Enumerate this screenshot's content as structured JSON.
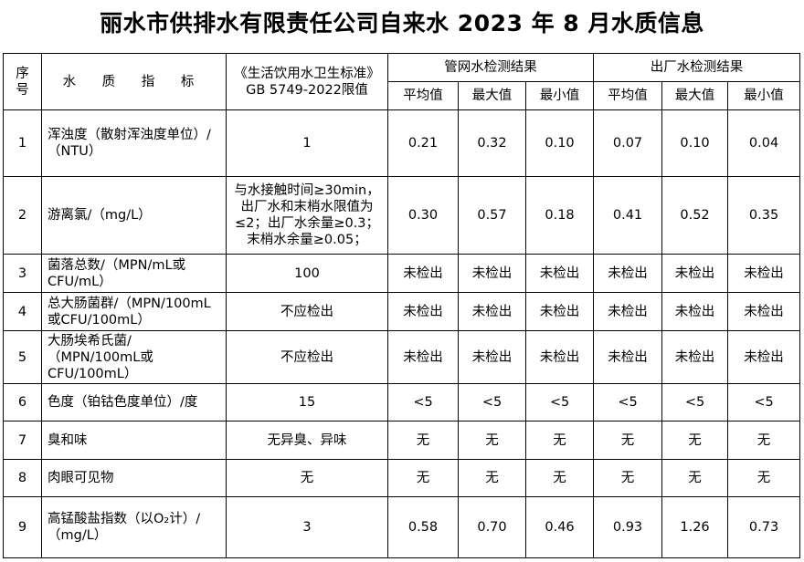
{
  "title": "丽水市供排水有限责任公司自来水 2023 年 8 月水质信息",
  "header": {
    "seq": "序号",
    "indicator": "水 质 指 标",
    "standard": "《生活饮用水卫生标准》GB 5749-2022限值",
    "network_group": "管网水检测结果",
    "plant_group": "出厂水检测结果",
    "sub": [
      "平均值",
      "最大值",
      "最小值",
      "平均值",
      "最大值",
      "最小值"
    ]
  },
  "rows": [
    {
      "seq": "1",
      "indicator": "浑浊度（散射浑浊度单位）/（NTU）",
      "limit": "1",
      "values": [
        "0.21",
        "0.32",
        "0.10",
        "0.07",
        "0.10",
        "0.04"
      ]
    },
    {
      "seq": "2",
      "indicator": "游离氯/（mg/L）",
      "limit": "与水接触时间≥30min，出厂水和末梢水限值为≤2；出厂水余量≥0.3；末梢水余量≥0.05；",
      "values": [
        "0.30",
        "0.57",
        "0.18",
        "0.41",
        "0.52",
        "0.35"
      ]
    },
    {
      "seq": "3",
      "indicator": "菌落总数/（MPN/mL或CFU/mL）",
      "limit": "100",
      "values": [
        "未检出",
        "未检出",
        "未检出",
        "未检出",
        "未检出",
        "未检出"
      ]
    },
    {
      "seq": "4",
      "indicator": "总大肠菌群/（MPN/100mL或CFU/100mL）",
      "limit": "不应检出",
      "values": [
        "未检出",
        "未检出",
        "未检出",
        "未检出",
        "未检出",
        "未检出"
      ]
    },
    {
      "seq": "5",
      "indicator": "大肠埃希氏菌/（MPN/100mL或CFU/100mL）",
      "limit": "不应检出",
      "values": [
        "未检出",
        "未检出",
        "未检出",
        "未检出",
        "未检出",
        "未检出"
      ]
    },
    {
      "seq": "6",
      "indicator": "色度（铂钴色度单位）/度",
      "limit": "15",
      "values": [
        "<5",
        "<5",
        "<5",
        "<5",
        "<5",
        "<5"
      ]
    },
    {
      "seq": "7",
      "indicator": "臭和味",
      "limit": "无异臭、异味",
      "values": [
        "无",
        "无",
        "无",
        "无",
        "无",
        "无"
      ]
    },
    {
      "seq": "8",
      "indicator": "肉眼可见物",
      "limit": "无",
      "values": [
        "无",
        "无",
        "无",
        "无",
        "无",
        "无"
      ]
    },
    {
      "seq": "9",
      "indicator": "高锰酸盐指数（以O₂计）/（mg/L）",
      "limit": "3",
      "values": [
        "0.58",
        "0.70",
        "0.46",
        "0.93",
        "1.26",
        "0.73"
      ]
    }
  ]
}
